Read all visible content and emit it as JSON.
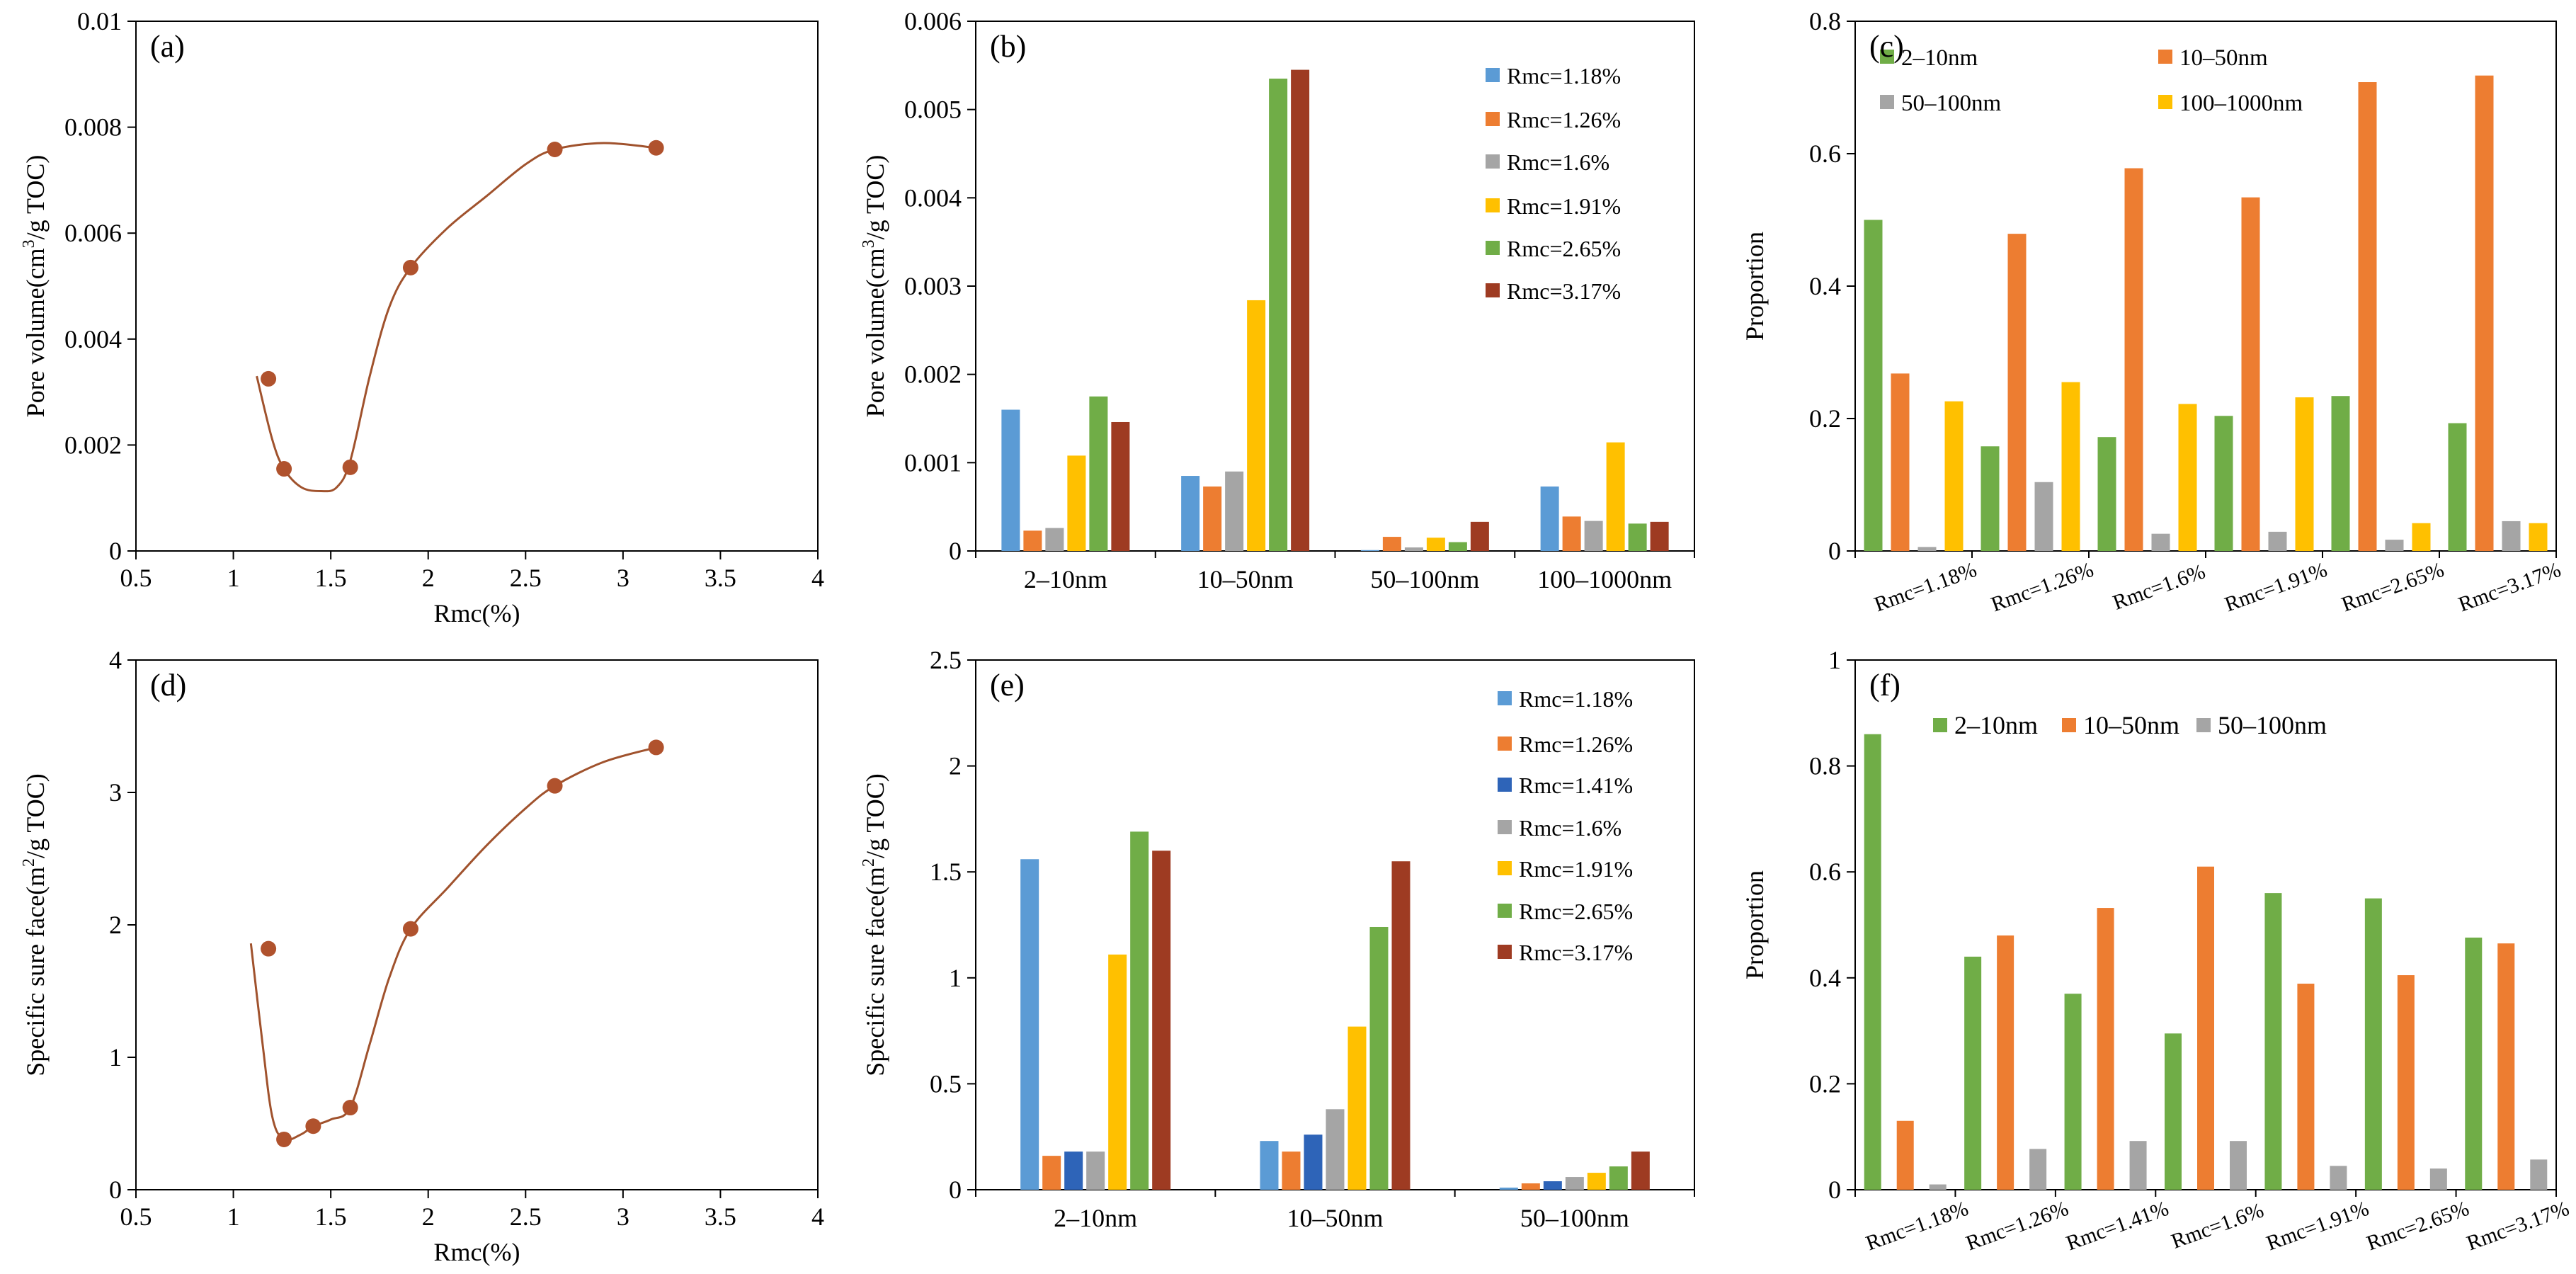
{
  "colors": {
    "curve": "#a0522d",
    "marker": "#b0522d",
    "series": {
      "Rmc=1.18%": "#5b9bd5",
      "Rmc=1.26%": "#ed7d31",
      "Rmc=1.41%": "#2e64b8",
      "Rmc=1.6%": "#a5a5a5",
      "Rmc=1.91%": "#ffc000",
      "Rmc=2.65%": "#70ad47",
      "Rmc=3.17%": "#9e3b22",
      "2–10nm": "#70ad47",
      "10–50nm": "#ed7d31",
      "50–100nm": "#a5a5a5",
      "100–1000nm": "#ffc000"
    }
  },
  "chart_data": [
    {
      "panel": "(a)",
      "type": "scatter",
      "xlabel": "Rmc(%)",
      "ylabel": "Pore volume(cm3/g TOC)",
      "ylabel_parts": [
        "Pore volume(cm",
        "3",
        "/g TOC)"
      ],
      "xlim": [
        0.5,
        4
      ],
      "ylim": [
        0,
        0.01
      ],
      "xticks": [
        0.5,
        1,
        1.5,
        2,
        2.5,
        3,
        3.5,
        4
      ],
      "xtick_labels": [
        "0.5",
        "1",
        "1.5",
        "2",
        "2.5",
        "3",
        "3.5",
        "4"
      ],
      "yticks": [
        0,
        0.002,
        0.004,
        0.006,
        0.008,
        0.01
      ],
      "ytick_labels": [
        "0",
        "0.002",
        "0.004",
        "0.006",
        "0.008",
        "0.01"
      ],
      "points": [
        {
          "x": 1.18,
          "y": 0.00325
        },
        {
          "x": 1.26,
          "y": 0.00155
        },
        {
          "x": 1.6,
          "y": 0.00158
        },
        {
          "x": 1.91,
          "y": 0.00535
        },
        {
          "x": 2.65,
          "y": 0.00758
        },
        {
          "x": 3.17,
          "y": 0.00761
        }
      ],
      "curve": [
        {
          "x": 1.12,
          "y": 0.0033
        },
        {
          "x": 1.2,
          "y": 0.0021
        },
        {
          "x": 1.26,
          "y": 0.00155
        },
        {
          "x": 1.35,
          "y": 0.0012
        },
        {
          "x": 1.45,
          "y": 0.00113
        },
        {
          "x": 1.53,
          "y": 0.0012
        },
        {
          "x": 1.6,
          "y": 0.0017
        },
        {
          "x": 1.7,
          "y": 0.0033
        },
        {
          "x": 1.8,
          "y": 0.0046
        },
        {
          "x": 1.91,
          "y": 0.00535
        },
        {
          "x": 2.1,
          "y": 0.0061
        },
        {
          "x": 2.3,
          "y": 0.0067
        },
        {
          "x": 2.5,
          "y": 0.0073
        },
        {
          "x": 2.65,
          "y": 0.00758
        },
        {
          "x": 2.9,
          "y": 0.0077
        },
        {
          "x": 3.17,
          "y": 0.00761
        }
      ]
    },
    {
      "panel": "(b)",
      "type": "bar",
      "xlabel": "",
      "ylabel": "Pore volume(cm3/g TOC)",
      "ylabel_parts": [
        "Pore volume(cm",
        "3",
        "/g TOC)"
      ],
      "categories": [
        "2–10nm",
        "10–50nm",
        "50–100nm",
        "100–1000nm"
      ],
      "ylim": [
        0,
        0.006
      ],
      "yticks": [
        0,
        0.001,
        0.002,
        0.003,
        0.004,
        0.005,
        0.006
      ],
      "ytick_labels": [
        "0",
        "0.001",
        "0.002",
        "0.003",
        "0.004",
        "0.005",
        "0.006"
      ],
      "legend": "top-right",
      "series": [
        {
          "name": "Rmc=1.18%",
          "values": [
            0.0016,
            0.00085,
            1e-05,
            0.00073
          ]
        },
        {
          "name": "Rmc=1.26%",
          "values": [
            0.00023,
            0.00073,
            0.00016,
            0.00039
          ]
        },
        {
          "name": "Rmc=1.6%",
          "values": [
            0.00026,
            0.0009,
            4e-05,
            0.00034
          ]
        },
        {
          "name": "Rmc=1.91%",
          "values": [
            0.00108,
            0.00284,
            0.00015,
            0.00123
          ]
        },
        {
          "name": "Rmc=2.65%",
          "values": [
            0.00175,
            0.00535,
            0.0001,
            0.00031
          ]
        },
        {
          "name": "Rmc=3.17%",
          "values": [
            0.00146,
            0.00545,
            0.00033,
            0.00033
          ]
        }
      ]
    },
    {
      "panel": "(c)",
      "type": "bar",
      "xlabel": "",
      "ylabel": "Proportion",
      "categories": [
        "Rmc=1.18%",
        "Rmc=1.26%",
        "Rmc=1.6%",
        "Rmc=1.91%",
        "Rmc=2.65%",
        "Rmc=3.17%"
      ],
      "ylim": [
        0,
        0.8
      ],
      "yticks": [
        0,
        0.2,
        0.4,
        0.6,
        0.8
      ],
      "ytick_labels": [
        "0",
        "0.2",
        "0.4",
        "0.6",
        "0.8"
      ],
      "legend": "top, two rows",
      "series": [
        {
          "name": "2–10nm",
          "values": [
            0.5,
            0.158,
            0.172,
            0.204,
            0.234,
            0.193
          ]
        },
        {
          "name": "10–50nm",
          "values": [
            0.268,
            0.479,
            0.578,
            0.534,
            0.708,
            0.718
          ]
        },
        {
          "name": "50–100nm",
          "values": [
            0.006,
            0.104,
            0.026,
            0.029,
            0.017,
            0.045
          ]
        },
        {
          "name": "100–1000nm",
          "values": [
            0.226,
            0.255,
            0.222,
            0.232,
            0.042,
            0.042
          ]
        }
      ]
    },
    {
      "panel": "(d)",
      "type": "scatter",
      "xlabel": "Rmc(%)",
      "ylabel": "Specific sure face(m2/g TOC)",
      "ylabel_parts": [
        "Specific sure face(m",
        "2",
        "/g TOC)"
      ],
      "xlim": [
        0.5,
        4
      ],
      "ylim": [
        0,
        4
      ],
      "xticks": [
        0.5,
        1,
        1.5,
        2,
        2.5,
        3,
        3.5,
        4
      ],
      "xtick_labels": [
        "0.5",
        "1",
        "1.5",
        "2",
        "2.5",
        "3",
        "3.5",
        "4"
      ],
      "yticks": [
        0,
        1,
        2,
        3,
        4
      ],
      "ytick_labels": [
        "0",
        "1",
        "2",
        "3",
        "4"
      ],
      "points": [
        {
          "x": 1.18,
          "y": 1.82
        },
        {
          "x": 1.26,
          "y": 0.38
        },
        {
          "x": 1.41,
          "y": 0.48
        },
        {
          "x": 1.6,
          "y": 0.62
        },
        {
          "x": 1.91,
          "y": 1.97
        },
        {
          "x": 2.65,
          "y": 3.05
        },
        {
          "x": 3.17,
          "y": 3.34
        }
      ],
      "curve": [
        {
          "x": 1.09,
          "y": 1.86
        },
        {
          "x": 1.15,
          "y": 1.1
        },
        {
          "x": 1.2,
          "y": 0.55
        },
        {
          "x": 1.26,
          "y": 0.38
        },
        {
          "x": 1.35,
          "y": 0.42
        },
        {
          "x": 1.41,
          "y": 0.48
        },
        {
          "x": 1.5,
          "y": 0.53
        },
        {
          "x": 1.6,
          "y": 0.62
        },
        {
          "x": 1.7,
          "y": 1.1
        },
        {
          "x": 1.8,
          "y": 1.6
        },
        {
          "x": 1.91,
          "y": 1.97
        },
        {
          "x": 2.1,
          "y": 2.28
        },
        {
          "x": 2.3,
          "y": 2.6
        },
        {
          "x": 2.5,
          "y": 2.88
        },
        {
          "x": 2.65,
          "y": 3.05
        },
        {
          "x": 2.9,
          "y": 3.23
        },
        {
          "x": 3.17,
          "y": 3.34
        }
      ]
    },
    {
      "panel": "(e)",
      "type": "bar",
      "xlabel": "",
      "ylabel": "Specific sure face(m2/g TOC)",
      "ylabel_parts": [
        "Specific sure face(m",
        "2",
        "/g TOC)"
      ],
      "categories": [
        "2–10nm",
        "10–50nm",
        "50–100nm"
      ],
      "ylim": [
        0,
        2.5
      ],
      "yticks": [
        0,
        0.5,
        1,
        1.5,
        2,
        2.5
      ],
      "ytick_labels": [
        "0",
        "0.5",
        "1",
        "1.5",
        "2",
        "2.5"
      ],
      "legend": "top-right",
      "series": [
        {
          "name": "Rmc=1.18%",
          "values": [
            1.56,
            0.23,
            0.01
          ]
        },
        {
          "name": "Rmc=1.26%",
          "values": [
            0.16,
            0.18,
            0.03
          ]
        },
        {
          "name": "Rmc=1.41%",
          "values": [
            0.18,
            0.26,
            0.04
          ]
        },
        {
          "name": "Rmc=1.6%",
          "values": [
            0.18,
            0.38,
            0.06
          ]
        },
        {
          "name": "Rmc=1.91%",
          "values": [
            1.11,
            0.77,
            0.08
          ]
        },
        {
          "name": "Rmc=2.65%",
          "values": [
            1.69,
            1.24,
            0.11
          ]
        },
        {
          "name": "Rmc=3.17%",
          "values": [
            1.6,
            1.55,
            0.18
          ]
        }
      ]
    },
    {
      "panel": "(f)",
      "type": "bar",
      "xlabel": "",
      "ylabel": "Proportion",
      "categories": [
        "Rmc=1.18%",
        "Rmc=1.26%",
        "Rmc=1.41%",
        "Rmc=1.6%",
        "Rmc=1.91%",
        "Rmc=2.65%",
        "Rmc=3.17%"
      ],
      "ylim": [
        0,
        1
      ],
      "yticks": [
        0,
        0.2,
        0.4,
        0.6,
        0.8,
        1
      ],
      "ytick_labels": [
        "0",
        "0.2",
        "0.4",
        "0.6",
        "0.8",
        "1"
      ],
      "legend": "top, one row",
      "series": [
        {
          "name": "2–10nm",
          "values": [
            0.86,
            0.44,
            0.37,
            0.295,
            0.56,
            0.55,
            0.476
          ]
        },
        {
          "name": "10–50nm",
          "values": [
            0.13,
            0.48,
            0.532,
            0.61,
            0.389,
            0.405,
            0.465
          ]
        },
        {
          "name": "50–100nm",
          "values": [
            0.01,
            0.077,
            0.092,
            0.092,
            0.045,
            0.04,
            0.057
          ]
        }
      ]
    }
  ]
}
